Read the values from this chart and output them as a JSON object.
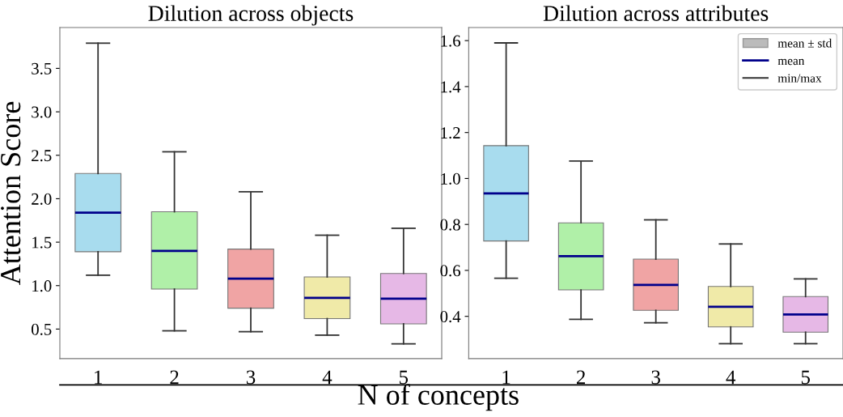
{
  "chart_data": [
    {
      "type": "box",
      "title": "Dilution across objects",
      "ylabel": "Attention Score",
      "xlabel": "N of concepts",
      "categories": [
        "1",
        "2",
        "3",
        "4",
        "5"
      ],
      "colors": [
        "#a8dcee",
        "#b0f0a8",
        "#f0a4a4",
        "#f0eaa8",
        "#e6b8e6"
      ],
      "boxes": [
        {
          "low": 1.12,
          "q1": 1.39,
          "median": 1.84,
          "q3": 2.29,
          "high": 3.79
        },
        {
          "low": 0.48,
          "q1": 0.96,
          "median": 1.4,
          "q3": 1.85,
          "high": 2.54
        },
        {
          "low": 0.47,
          "q1": 0.74,
          "median": 1.08,
          "q3": 1.42,
          "high": 2.08
        },
        {
          "low": 0.43,
          "q1": 0.62,
          "median": 0.86,
          "q3": 1.1,
          "high": 1.58
        },
        {
          "low": 0.33,
          "q1": 0.56,
          "median": 0.85,
          "q3": 1.14,
          "high": 1.66
        }
      ],
      "ylim": [
        0.16,
        3.97
      ],
      "yticks": [
        {
          "value": 0.5,
          "label": "0.5"
        },
        {
          "value": 1.0,
          "label": "1.0"
        },
        {
          "value": 1.5,
          "label": "1.5"
        },
        {
          "value": 2.0,
          "label": "2.0"
        },
        {
          "value": 2.5,
          "label": "2.5"
        },
        {
          "value": 3.0,
          "label": "3.0"
        },
        {
          "value": 3.5,
          "label": "3.5"
        }
      ],
      "grid": false
    },
    {
      "type": "box",
      "title": "Dilution across attributes",
      "categories": [
        "1",
        "2",
        "3",
        "4",
        "5"
      ],
      "colors": [
        "#a8dcee",
        "#b0f0a8",
        "#f0a4a4",
        "#f0eaa8",
        "#e6b8e6"
      ],
      "boxes": [
        {
          "low": 0.566,
          "q1": 0.728,
          "median": 0.935,
          "q3": 1.143,
          "high": 1.59
        },
        {
          "low": 0.387,
          "q1": 0.515,
          "median": 0.662,
          "q3": 0.807,
          "high": 1.076
        },
        {
          "low": 0.372,
          "q1": 0.426,
          "median": 0.537,
          "q3": 0.649,
          "high": 0.82
        },
        {
          "low": 0.281,
          "q1": 0.354,
          "median": 0.442,
          "q3": 0.53,
          "high": 0.715
        },
        {
          "low": 0.281,
          "q1": 0.331,
          "median": 0.408,
          "q3": 0.486,
          "high": 0.563
        }
      ],
      "ylim": [
        0.216,
        1.657
      ],
      "yticks": [
        {
          "value": 0.4,
          "label": "0.4"
        },
        {
          "value": 0.6,
          "label": "0.6"
        },
        {
          "value": 0.8,
          "label": "0.8"
        },
        {
          "value": 1.0,
          "label": "1.0"
        },
        {
          "value": 1.2,
          "label": "1.2"
        },
        {
          "value": 1.4,
          "label": "1.4"
        },
        {
          "value": 1.6,
          "label": "1.6"
        }
      ],
      "annotations": [
        "mean ± std",
        "mean",
        "min/max"
      ],
      "grid": false
    }
  ]
}
